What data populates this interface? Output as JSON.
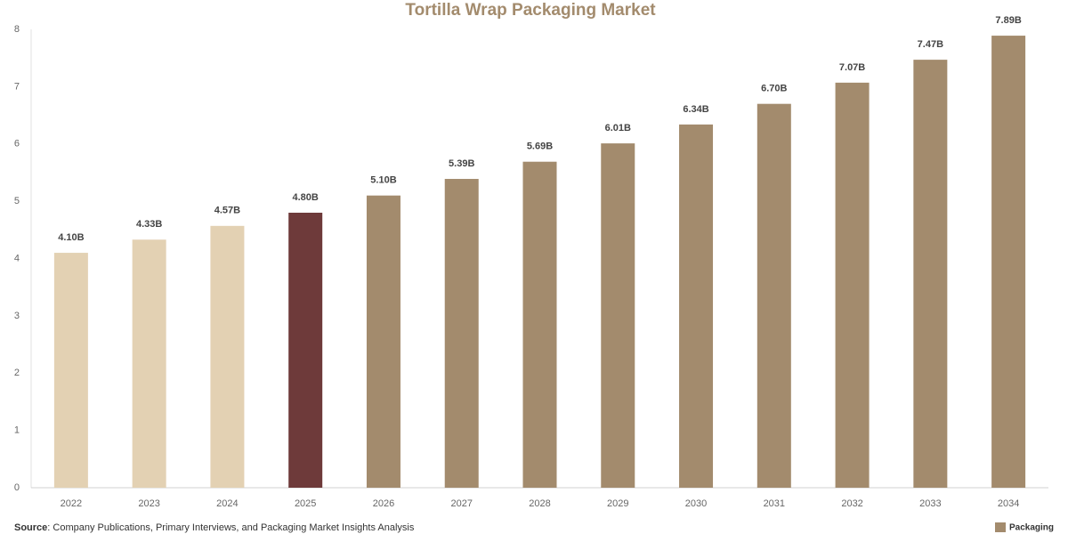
{
  "chart_data": {
    "type": "bar",
    "title": "Tortilla Wrap Packaging Market",
    "categories": [
      "2022",
      "2023",
      "2024",
      "2025",
      "2026",
      "2027",
      "2028",
      "2029",
      "2030",
      "2031",
      "2032",
      "2033",
      "2034"
    ],
    "values": [
      4.1,
      4.33,
      4.57,
      4.8,
      5.1,
      5.39,
      5.69,
      6.01,
      6.34,
      6.7,
      7.07,
      7.47,
      7.89
    ],
    "value_labels": [
      "4.10B",
      "4.33B",
      "4.57B",
      "4.80B",
      "5.10B",
      "5.39B",
      "5.69B",
      "6.01B",
      "6.34B",
      "6.70B",
      "7.07B",
      "7.47B",
      "7.89B"
    ],
    "colors": [
      "#e3d1b3",
      "#e3d1b3",
      "#e3d1b3",
      "#6e3a3a",
      "#a38b6d",
      "#a38b6d",
      "#a38b6d",
      "#a38b6d",
      "#a38b6d",
      "#a38b6d",
      "#a38b6d",
      "#a38b6d",
      "#a38b6d"
    ],
    "ylim": [
      0,
      8
    ],
    "yticks": [
      0,
      1,
      2,
      3,
      4,
      5,
      6,
      7,
      8
    ],
    "grid": false,
    "source_label": "Source",
    "source_text": ": Company Publications, Primary Interviews, and Packaging Market Insights Analysis",
    "logo_text": "Packaging"
  }
}
